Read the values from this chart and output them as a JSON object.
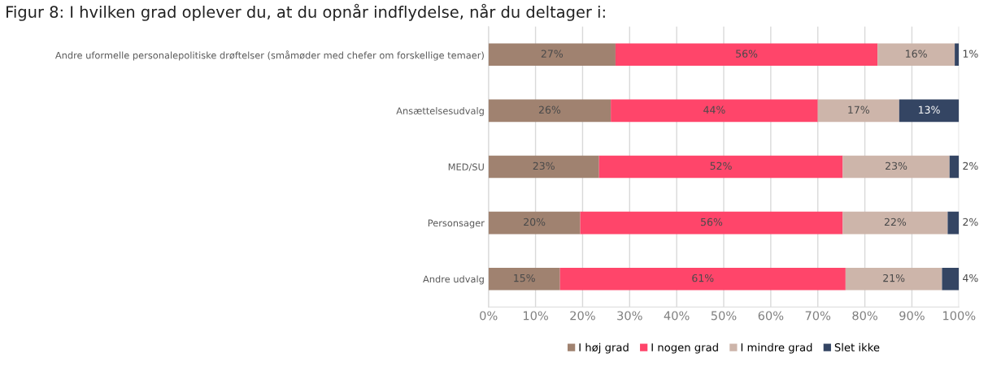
{
  "chart_data": {
    "type": "bar",
    "orientation": "horizontal",
    "stacked": true,
    "title": "Figur 8: I hvilken grad oplever du, at du opnår indflydelse, når du deltager i:",
    "categories": [
      "Andre uformelle personalepolitiske drøftelser (småmøder med chefer om forskellige temaer)",
      "Ansættelsesudvalg",
      "MED/SU",
      "Personsager",
      "Andre udvalg"
    ],
    "series": [
      {
        "name": "I høj grad",
        "color": "#a08270",
        "values": [
          27,
          26,
          23.5,
          19.5,
          15.2
        ],
        "value_labels": [
          "27%",
          "26%",
          "23%",
          "20%",
          "15%"
        ]
      },
      {
        "name": "I nogen grad",
        "color": "#ff456a",
        "values": [
          55.7,
          44,
          51.8,
          55.8,
          60.7
        ],
        "value_labels": [
          "56%",
          "44%",
          "52%",
          "56%",
          "61%"
        ]
      },
      {
        "name": "I mindre grad",
        "color": "#cdb5aa",
        "values": [
          16.4,
          17.3,
          22.7,
          22.3,
          20.5
        ],
        "value_labels": [
          "16%",
          "17%",
          "23%",
          "22%",
          "21%"
        ]
      },
      {
        "name": "Slet ikke",
        "color": "#344563",
        "values": [
          0.9,
          12.7,
          2.0,
          2.4,
          3.6
        ],
        "value_labels": [
          "1%",
          "13%",
          "2%",
          "2%",
          "4%"
        ]
      }
    ],
    "xlim": [
      0,
      100
    ],
    "xticks": [
      {
        "value": 0,
        "label": "0%"
      },
      {
        "value": 10,
        "label": "10%"
      },
      {
        "value": 20,
        "label": "20%"
      },
      {
        "value": 30,
        "label": "30%"
      },
      {
        "value": 40,
        "label": "40%"
      },
      {
        "value": 50,
        "label": "50%"
      },
      {
        "value": 60,
        "label": "60%"
      },
      {
        "value": 70,
        "label": "70%"
      },
      {
        "value": 80,
        "label": "80%"
      },
      {
        "value": 90,
        "label": "90%"
      },
      {
        "value": 100,
        "label": "100%"
      }
    ],
    "grid": "x",
    "legend": "bottom"
  }
}
